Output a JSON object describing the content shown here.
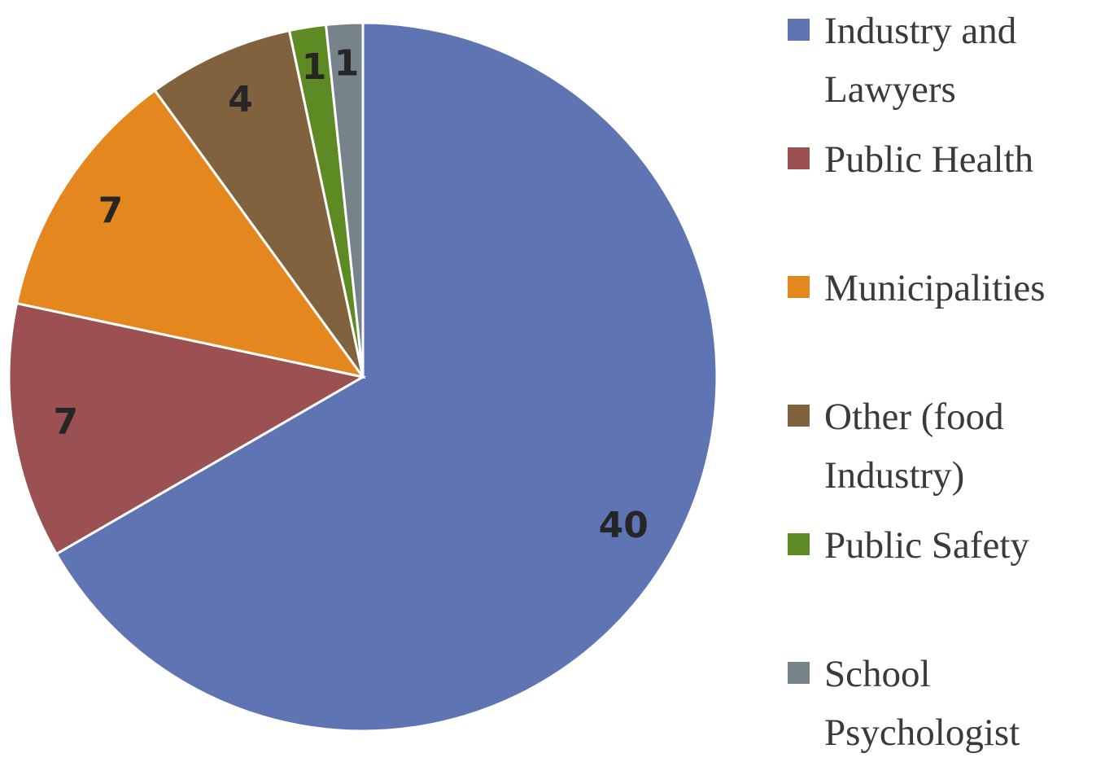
{
  "chart_data": {
    "type": "pie",
    "categories": [
      "Industry and Lawyers",
      "Public Health",
      "Municipalities",
      "Other (food Industry)",
      "Public Safety",
      "School Psychologist"
    ],
    "values": [
      40,
      7,
      7,
      4,
      1,
      1
    ],
    "colors": [
      "#5f75b3",
      "#9b5052",
      "#e5871f",
      "#80623f",
      "#5d8a22",
      "#77838a"
    ]
  }
}
